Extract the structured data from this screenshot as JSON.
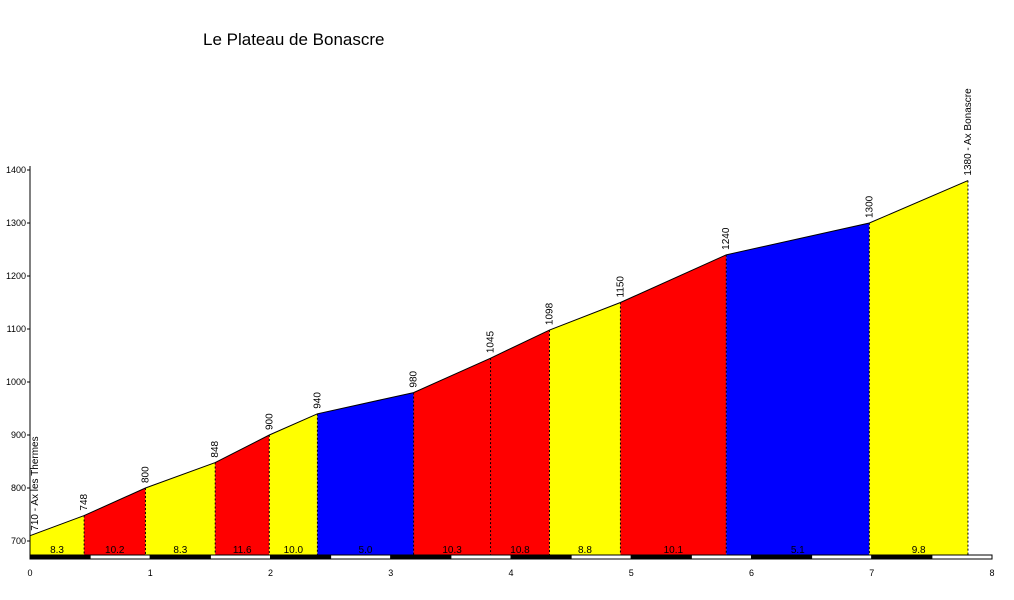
{
  "chart_data": {
    "type": "area",
    "title": "Le Plateau de Bonascre",
    "xlabel": "",
    "ylabel": "",
    "xlim": [
      0,
      8
    ],
    "ylim": [
      680,
      1400
    ],
    "yticks": [
      700,
      800,
      900,
      1000,
      1100,
      1200,
      1300,
      1400
    ],
    "xticks": [
      0,
      1,
      2,
      3,
      4,
      5,
      6,
      7,
      8
    ],
    "ytick_labels": [
      "700",
      "800",
      "900",
      "1000",
      "1100",
      "1200",
      "1300",
      "1400"
    ],
    "xtick_labels": [
      "0",
      "1",
      "2",
      "3",
      "4",
      "5",
      "6",
      "7",
      "8"
    ],
    "grid": false,
    "profile": [
      {
        "km": 0,
        "alt": 710,
        "label": "710 - Ax les Thermes"
      },
      {
        "km": 0.45,
        "alt": 748,
        "label": "748"
      },
      {
        "km": 0.96,
        "alt": 800,
        "label": "800"
      },
      {
        "km": 1.54,
        "alt": 848,
        "label": "848"
      },
      {
        "km": 1.99,
        "alt": 900,
        "label": "900"
      },
      {
        "km": 2.39,
        "alt": 940,
        "label": "940"
      },
      {
        "km": 3.19,
        "alt": 980,
        "label": "980"
      },
      {
        "km": 3.83,
        "alt": 1045,
        "label": "1045"
      },
      {
        "km": 4.32,
        "alt": 1098,
        "label": "1098"
      },
      {
        "km": 4.91,
        "alt": 1150,
        "label": "1150"
      },
      {
        "km": 5.79,
        "alt": 1240,
        "label": "1240"
      },
      {
        "km": 6.98,
        "alt": 1300,
        "label": "1300"
      },
      {
        "km": 7.8,
        "alt": 1380,
        "label": "1380 - Ax Bonascre"
      }
    ],
    "segments": [
      {
        "gradient": "8.3",
        "color": "#ffff00"
      },
      {
        "gradient": "10.2",
        "color": "#ff0000"
      },
      {
        "gradient": "8.3",
        "color": "#ffff00"
      },
      {
        "gradient": "11.6",
        "color": "#ff0000"
      },
      {
        "gradient": "10.0",
        "color": "#ffff00"
      },
      {
        "gradient": "5.0",
        "color": "#0000ff"
      },
      {
        "gradient": "10.3",
        "color": "#ff0000"
      },
      {
        "gradient": "10.8",
        "color": "#ff0000"
      },
      {
        "gradient": "8.8",
        "color": "#ffff00"
      },
      {
        "gradient": "10.1",
        "color": "#ff0000"
      },
      {
        "gradient": "5.1",
        "color": "#0000ff"
      },
      {
        "gradient": "9.8",
        "color": "#ffff00"
      }
    ]
  }
}
